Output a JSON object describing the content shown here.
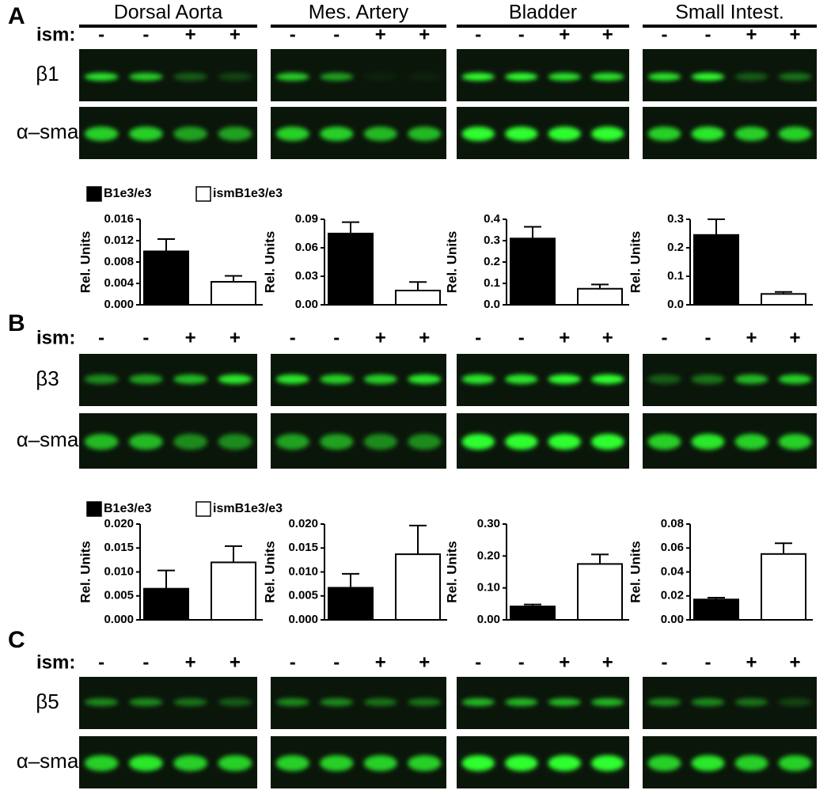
{
  "panel_labels": [
    "A",
    "B",
    "C"
  ],
  "tissues": [
    "Dorsal Aorta",
    "Mes. Artery",
    "Bladder",
    "Small Intest."
  ],
  "ism_label": "ism:",
  "lane_signs": [
    "-",
    "-",
    "+",
    "+"
  ],
  "blot_labels": [
    [
      "β1",
      "α–sma"
    ],
    [
      "β3",
      "α–sma"
    ],
    [
      "β5",
      "α–sma"
    ]
  ],
  "chart_data": [
    {
      "type": "bar",
      "ylabel": "Rel. Units",
      "legend": true,
      "ylim": [
        0,
        0.016
      ],
      "yticks": [
        {
          "value": 0,
          "label": "0.000"
        },
        0.004,
        0.008,
        0.012,
        0.016
      ],
      "series": [
        {
          "name": "B1e3/e3",
          "color": "#000000",
          "values": [
            0.01
          ],
          "errors": [
            0.0023
          ]
        },
        {
          "name": "ismB1e3/e3",
          "color": "#ffffff",
          "values": [
            0.0043
          ],
          "errors": [
            0.0011
          ]
        }
      ]
    },
    {
      "type": "bar",
      "ylabel": "Rel. Units",
      "legend": false,
      "ylim": [
        0,
        0.09
      ],
      "yticks": [
        {
          "value": 0,
          "label": "0.00"
        },
        0.03,
        0.06,
        0.09
      ],
      "series": [
        {
          "color": "#000000",
          "values": [
            0.075
          ],
          "errors": [
            0.012
          ]
        },
        {
          "color": "#ffffff",
          "values": [
            0.015
          ],
          "errors": [
            0.009
          ]
        }
      ]
    },
    {
      "type": "bar",
      "ylabel": "Rel. Units",
      "legend": false,
      "ylim": [
        0,
        0.4
      ],
      "yticks": [
        {
          "value": 0,
          "label": "0.0"
        },
        0.1,
        0.2,
        0.3,
        0.4
      ],
      "series": [
        {
          "color": "#000000",
          "values": [
            0.31
          ],
          "errors": [
            0.055
          ]
        },
        {
          "color": "#ffffff",
          "values": [
            0.075
          ],
          "errors": [
            0.02
          ]
        }
      ]
    },
    {
      "type": "bar",
      "ylabel": "Rel. Units",
      "legend": false,
      "ylim": [
        0,
        0.3
      ],
      "yticks": [
        {
          "value": 0,
          "label": "0.0"
        },
        0.1,
        0.2,
        0.3
      ],
      "series": [
        {
          "color": "#000000",
          "values": [
            0.245
          ],
          "errors": [
            0.055
          ]
        },
        {
          "color": "#ffffff",
          "values": [
            0.038
          ],
          "errors": [
            0.007
          ]
        }
      ]
    },
    {
      "type": "bar",
      "ylabel": "Rel. Units",
      "legend": true,
      "ylim": [
        0,
        0.02
      ],
      "yticks": [
        {
          "value": 0,
          "label": "0.000"
        },
        0.005,
        {
          "value": 0.01,
          "label": "0.010"
        },
        0.015,
        {
          "value": 0.02,
          "label": "0.020"
        }
      ],
      "series": [
        {
          "name": "B1e3/e3",
          "color": "#000000",
          "values": [
            0.0065
          ],
          "errors": [
            0.0038
          ]
        },
        {
          "name": "ismB1e3/e3",
          "color": "#ffffff",
          "values": [
            0.012
          ],
          "errors": [
            0.0034
          ]
        }
      ]
    },
    {
      "type": "bar",
      "ylabel": "Rel. Units",
      "legend": false,
      "ylim": [
        0,
        0.02
      ],
      "yticks": [
        {
          "value": 0,
          "label": "0.000"
        },
        0.005,
        {
          "value": 0.01,
          "label": "0.010"
        },
        0.015,
        {
          "value": 0.02,
          "label": "0.020"
        }
      ],
      "series": [
        {
          "color": "#000000",
          "values": [
            0.0067
          ],
          "errors": [
            0.0029
          ]
        },
        {
          "color": "#ffffff",
          "values": [
            0.0137
          ],
          "errors": [
            0.006
          ]
        }
      ]
    },
    {
      "type": "bar",
      "ylabel": "Rel. Units",
      "legend": false,
      "ylim": [
        0,
        0.3
      ],
      "yticks": [
        {
          "value": 0,
          "label": "0.00"
        },
        {
          "value": 0.1,
          "label": "0.10"
        },
        {
          "value": 0.2,
          "label": "0.20"
        },
        {
          "value": 0.3,
          "label": "0.30"
        }
      ],
      "series": [
        {
          "color": "#000000",
          "values": [
            0.042
          ],
          "errors": [
            0.006
          ]
        },
        {
          "color": "#ffffff",
          "values": [
            0.175
          ],
          "errors": [
            0.03
          ]
        }
      ]
    },
    {
      "type": "bar",
      "ylabel": "Rel. Units",
      "legend": false,
      "ylim": [
        0,
        0.08
      ],
      "yticks": [
        {
          "value": 0,
          "label": "0.00"
        },
        0.02,
        0.04,
        0.06,
        0.08
      ],
      "series": [
        {
          "color": "#000000",
          "values": [
            0.017
          ],
          "errors": [
            0.0015
          ]
        },
        {
          "color": "#ffffff",
          "values": [
            0.055
          ],
          "errors": [
            0.009
          ]
        }
      ]
    }
  ]
}
